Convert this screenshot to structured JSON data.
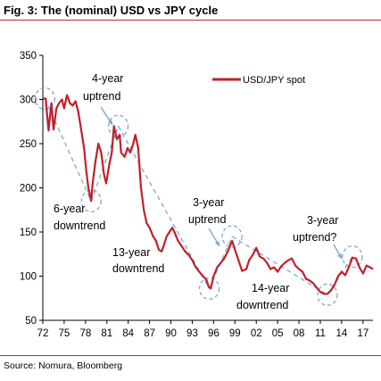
{
  "figure": {
    "title": "Fig. 3: The (nominal) USD vs JPY cycle",
    "source": "Source: Nomura, Bloomberg"
  },
  "colors": {
    "series": "#c0202a",
    "annotation_dashed": "#7fa6cf",
    "rule": "#b8282e"
  },
  "chart_data": {
    "type": "line",
    "title": "",
    "xlabel": "",
    "ylabel": "",
    "xlim": [
      1972,
      2018.4
    ],
    "ylim": [
      50,
      350
    ],
    "yticks": [
      50,
      100,
      150,
      200,
      250,
      300,
      350
    ],
    "xtick_labels": [
      "72",
      "75",
      "78",
      "81",
      "84",
      "87",
      "90",
      "93",
      "96",
      "99",
      "02",
      "05",
      "08",
      "11",
      "14",
      "17"
    ],
    "xtick_years": [
      1972,
      1975,
      1978,
      1981,
      1984,
      1987,
      1990,
      1993,
      1996,
      1999,
      2002,
      2005,
      2008,
      2011,
      2014,
      2017
    ],
    "grid": false,
    "legend": "top-right",
    "series": [
      {
        "name": "USD/JPY spot",
        "x": [
          1972.0,
          1972.4,
          1972.8,
          1973.2,
          1973.5,
          1973.9,
          1974.3,
          1974.7,
          1975.0,
          1975.4,
          1975.8,
          1976.2,
          1976.6,
          1977.0,
          1977.4,
          1977.8,
          1978.1,
          1978.4,
          1978.8,
          1979.0,
          1979.4,
          1979.8,
          1980.2,
          1980.6,
          1980.9,
          1981.3,
          1981.7,
          1982.0,
          1982.4,
          1982.8,
          1983.0,
          1983.5,
          1983.9,
          1984.3,
          1984.7,
          1985.0,
          1985.4,
          1985.8,
          1986.2,
          1986.6,
          1987.0,
          1987.5,
          1987.9,
          1988.3,
          1988.7,
          1989.0,
          1989.4,
          1989.8,
          1990.2,
          1990.6,
          1991.0,
          1991.5,
          1992.0,
          1992.5,
          1993.0,
          1993.5,
          1994.0,
          1994.5,
          1995.0,
          1995.3,
          1995.6,
          1996.0,
          1996.5,
          1997.0,
          1997.5,
          1998.0,
          1998.6,
          1999.0,
          1999.5,
          2000.0,
          2000.6,
          2001.0,
          2001.5,
          2002.0,
          2002.5,
          2003.0,
          2003.5,
          2004.0,
          2004.5,
          2005.0,
          2005.5,
          2006.0,
          2006.5,
          2007.0,
          2007.5,
          2008.0,
          2008.5,
          2009.0,
          2009.5,
          2010.0,
          2010.5,
          2011.0,
          2011.5,
          2012.0,
          2012.5,
          2013.0,
          2013.5,
          2014.0,
          2014.5,
          2015.0,
          2015.5,
          2016.0,
          2016.5,
          2017.0,
          2017.5,
          2018.0,
          2018.4
        ],
        "y": [
          301,
          301,
          265,
          296,
          266,
          290,
          296,
          300,
          290,
          305,
          296,
          293,
          298,
          285,
          265,
          245,
          220,
          200,
          185,
          205,
          230,
          250,
          240,
          215,
          205,
          225,
          240,
          270,
          255,
          260,
          240,
          235,
          245,
          240,
          250,
          260,
          245,
          200,
          175,
          160,
          155,
          145,
          140,
          130,
          128,
          135,
          145,
          150,
          155,
          148,
          140,
          134,
          128,
          124,
          118,
          110,
          105,
          100,
          96,
          88,
          86,
          100,
          110,
          115,
          120,
          128,
          140,
          130,
          118,
          106,
          108,
          118,
          124,
          132,
          122,
          120,
          115,
          108,
          110,
          105,
          111,
          115,
          118,
          120,
          112,
          108,
          105,
          97,
          95,
          92,
          87,
          82,
          80,
          80,
          84,
          90,
          100,
          105,
          101,
          110,
          121,
          120,
          110,
          103,
          112,
          110,
          108
        ]
      }
    ]
  },
  "annotations": {
    "a1": {
      "line1": "4-year",
      "line2": "uptrend"
    },
    "a2": {
      "line1": "6-year",
      "line2": "downtrend"
    },
    "a3": {
      "line1": "13-year",
      "line2": "downtrend"
    },
    "a4": {
      "line1": "3-year",
      "line2": "uptrend"
    },
    "a5": {
      "line1": "14-year",
      "line2": "downtrend"
    },
    "a6": {
      "line1": "3-year",
      "line2": "uptrend?"
    }
  }
}
